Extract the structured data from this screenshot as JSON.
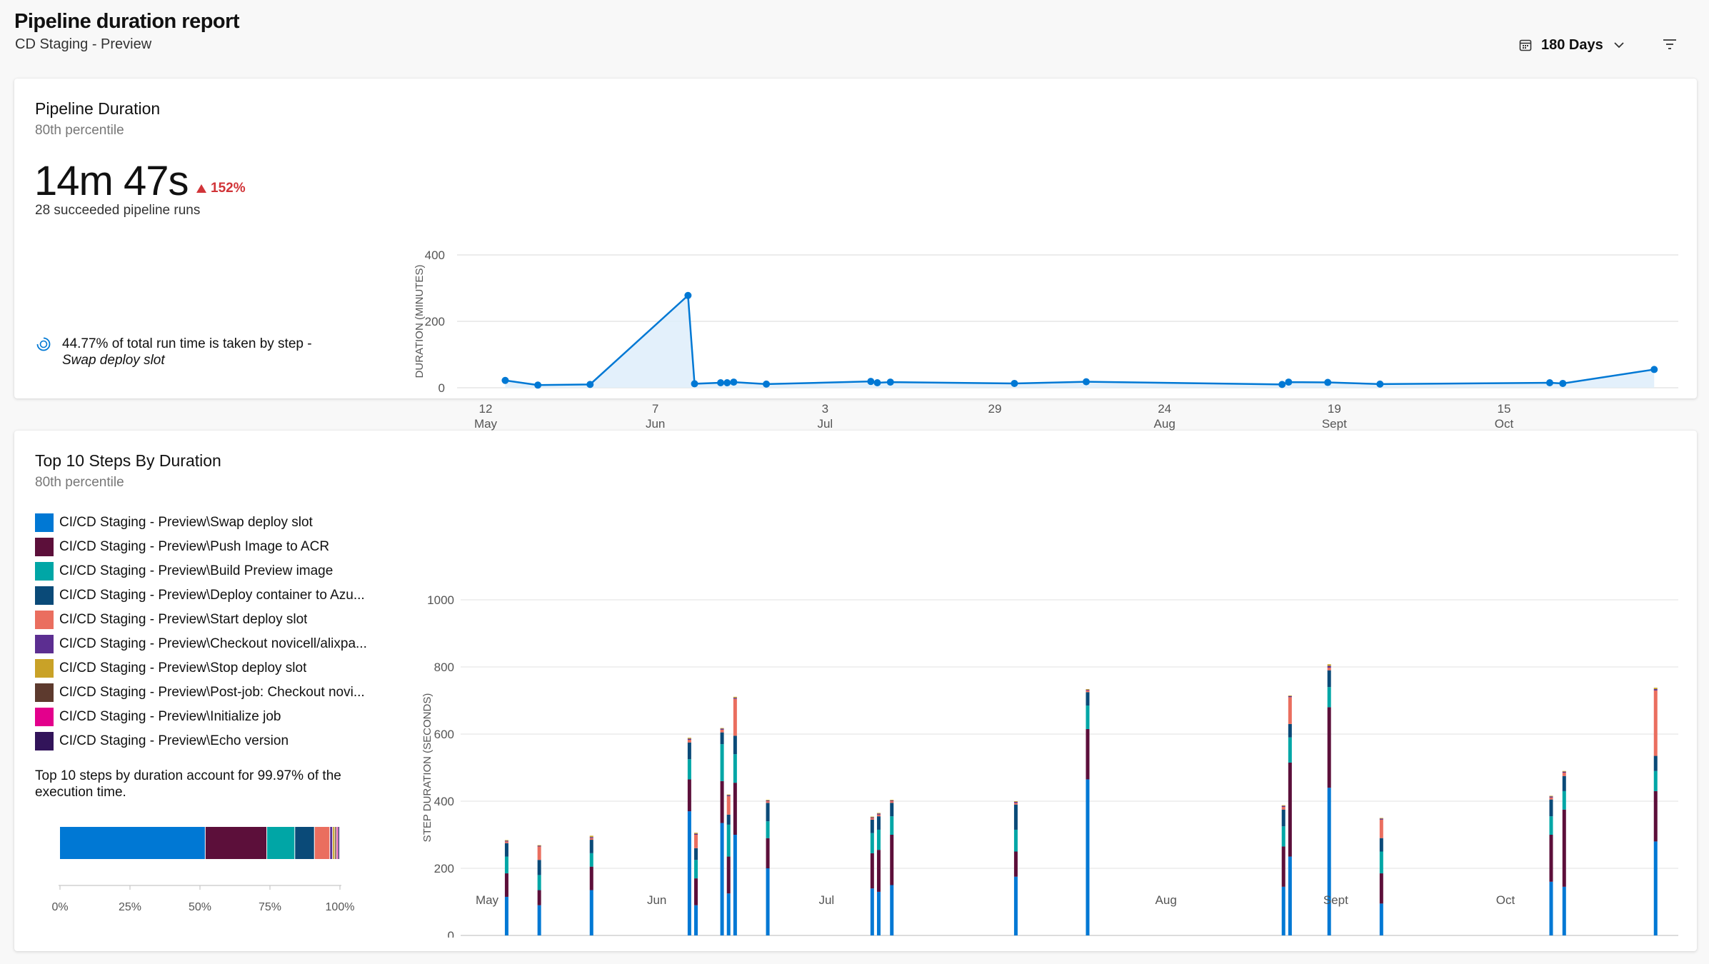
{
  "header": {
    "title": "Pipeline duration report",
    "subtitle": "CD Staging - Preview",
    "range_label": "180 Days",
    "calendar_icon": "calendar-icon",
    "chevron_icon": "chevron-down-icon",
    "filter_icon": "filter-icon"
  },
  "duration_card": {
    "title": "Pipeline Duration",
    "subtitle": "80th percentile",
    "metric": "14m 47s",
    "trend": "152%",
    "trend_color": "#d13438",
    "runs": "28 succeeded pipeline runs",
    "insight_text": "44.77% of total run time is taken by step -",
    "insight_step": "Swap deploy slot",
    "insight_icon": "insight-icon"
  },
  "steps_card": {
    "title": "Top 10 Steps By Duration",
    "subtitle": "80th percentile",
    "note": "Top 10 steps by duration account for 99.97% of the execution time.",
    "legend": [
      {
        "label": "CI/CD Staging - Preview\\Swap deploy slot",
        "color": "#0078d4"
      },
      {
        "label": "CI/CD Staging - Preview\\Push Image to ACR",
        "color": "#5c0f3a"
      },
      {
        "label": "CI/CD Staging - Preview\\Build Preview image",
        "color": "#00a6a6"
      },
      {
        "label": "CI/CD Staging - Preview\\Deploy container to Azu...",
        "color": "#0a4a78"
      },
      {
        "label": "CI/CD Staging - Preview\\Start deploy slot",
        "color": "#ea6e5f"
      },
      {
        "label": "CI/CD Staging - Preview\\Checkout novicell/alixpa...",
        "color": "#5c2e91"
      },
      {
        "label": "CI/CD Staging - Preview\\Stop deploy slot",
        "color": "#c9a227"
      },
      {
        "label": "CI/CD Staging - Preview\\Post-job: Checkout novi...",
        "color": "#5d3a2e"
      },
      {
        "label": "CI/CD Staging - Preview\\Initialize job",
        "color": "#e3008c"
      },
      {
        "label": "CI/CD Staging - Preview\\Echo version",
        "color": "#32145a"
      }
    ]
  },
  "chart_data": [
    {
      "type": "area",
      "title": "Pipeline Duration",
      "ylabel": "DURATION (MINUTES)",
      "ylim": [
        0,
        400
      ],
      "yticks": [
        0,
        200,
        400
      ],
      "xticks": [
        {
          "day": "12",
          "month": "May"
        },
        {
          "day": "7",
          "month": "Jun"
        },
        {
          "day": "3",
          "month": "Jul"
        },
        {
          "day": "29",
          "month": ""
        },
        {
          "day": "24",
          "month": "Aug"
        },
        {
          "day": "19",
          "month": "Sept"
        },
        {
          "day": "15",
          "month": "Oct"
        }
      ],
      "xtick_dates": [
        "2023-05-12",
        "2023-06-07",
        "2023-07-03",
        "2023-07-29",
        "2023-08-24",
        "2023-09-19",
        "2023-10-15"
      ],
      "grid": true,
      "points": [
        {
          "x": "2023-05-15",
          "y": 22
        },
        {
          "x": "2023-05-20",
          "y": 8
        },
        {
          "x": "2023-05-28",
          "y": 10
        },
        {
          "x": "2023-06-12",
          "y": 278
        },
        {
          "x": "2023-06-13",
          "y": 12
        },
        {
          "x": "2023-06-17",
          "y": 15
        },
        {
          "x": "2023-06-18",
          "y": 15
        },
        {
          "x": "2023-06-19",
          "y": 17
        },
        {
          "x": "2023-06-24",
          "y": 11
        },
        {
          "x": "2023-07-10",
          "y": 19
        },
        {
          "x": "2023-07-11",
          "y": 15
        },
        {
          "x": "2023-07-13",
          "y": 17
        },
        {
          "x": "2023-08-01",
          "y": 13
        },
        {
          "x": "2023-08-12",
          "y": 18
        },
        {
          "x": "2023-09-11",
          "y": 10
        },
        {
          "x": "2023-09-12",
          "y": 17
        },
        {
          "x": "2023-09-18",
          "y": 16
        },
        {
          "x": "2023-09-26",
          "y": 11
        },
        {
          "x": "2023-10-22",
          "y": 15
        },
        {
          "x": "2023-10-24",
          "y": 13
        },
        {
          "x": "2023-11-07",
          "y": 55
        }
      ]
    },
    {
      "type": "bar",
      "stacked": true,
      "title": "Top 10 Steps By Duration",
      "ylabel": "STEP DURATION (SECONDS)",
      "ylim": [
        0,
        1000
      ],
      "yticks": [
        0,
        200,
        400,
        600,
        800,
        1000
      ],
      "xticks": [
        {
          "day": "12",
          "month": "May"
        },
        {
          "day": "7",
          "month": "Jun"
        },
        {
          "day": "3",
          "month": "Jul"
        },
        {
          "day": "29",
          "month": ""
        },
        {
          "day": "24",
          "month": "Aug"
        },
        {
          "day": "19",
          "month": "Sept"
        },
        {
          "day": "15",
          "month": "Oct"
        }
      ],
      "xtick_dates": [
        "2023-05-12",
        "2023-06-07",
        "2023-07-03",
        "2023-07-29",
        "2023-08-24",
        "2023-09-19",
        "2023-10-15"
      ],
      "grid": true,
      "series_order": [
        "Swap deploy slot",
        "Push Image to ACR",
        "Build Preview image",
        "Deploy container to Azu...",
        "Start deploy slot",
        "Checkout novicell/alixpa...",
        "Stop deploy slot"
      ],
      "bars": [
        {
          "x": "2023-05-15",
          "values": [
            115,
            70,
            50,
            40,
            5,
            2,
            2
          ]
        },
        {
          "x": "2023-05-20",
          "values": [
            90,
            45,
            45,
            45,
            40,
            2,
            2
          ]
        },
        {
          "x": "2023-05-28",
          "values": [
            135,
            70,
            40,
            40,
            5,
            3,
            4
          ]
        },
        {
          "x": "2023-06-12",
          "values": [
            370,
            95,
            60,
            50,
            8,
            3,
            3
          ]
        },
        {
          "x": "2023-06-13",
          "values": [
            90,
            80,
            55,
            35,
            40,
            3,
            3
          ]
        },
        {
          "x": "2023-06-17",
          "values": [
            335,
            125,
            110,
            35,
            8,
            3,
            2
          ]
        },
        {
          "x": "2023-06-18",
          "values": [
            125,
            110,
            95,
            30,
            55,
            3,
            2
          ]
        },
        {
          "x": "2023-06-19",
          "values": [
            300,
            155,
            85,
            55,
            110,
            3,
            3
          ]
        },
        {
          "x": "2023-06-24",
          "values": [
            200,
            90,
            50,
            55,
            5,
            2,
            2
          ]
        },
        {
          "x": "2023-07-10",
          "values": [
            140,
            105,
            60,
            40,
            5,
            2,
            2
          ]
        },
        {
          "x": "2023-07-11",
          "values": [
            130,
            125,
            60,
            40,
            5,
            3,
            2
          ]
        },
        {
          "x": "2023-07-13",
          "values": [
            150,
            150,
            55,
            40,
            5,
            2,
            2
          ]
        },
        {
          "x": "2023-08-01",
          "values": [
            175,
            75,
            65,
            75,
            5,
            3,
            2
          ]
        },
        {
          "x": "2023-08-12",
          "values": [
            465,
            150,
            70,
            40,
            5,
            2,
            2
          ]
        },
        {
          "x": "2023-09-11",
          "values": [
            145,
            120,
            60,
            50,
            8,
            3,
            2
          ]
        },
        {
          "x": "2023-09-12",
          "values": [
            235,
            280,
            75,
            40,
            80,
            3,
            2
          ]
        },
        {
          "x": "2023-09-18",
          "values": [
            440,
            240,
            60,
            50,
            8,
            5,
            5
          ]
        },
        {
          "x": "2023-09-26",
          "values": [
            95,
            90,
            65,
            40,
            55,
            3,
            2
          ]
        },
        {
          "x": "2023-10-22",
          "values": [
            160,
            140,
            55,
            50,
            6,
            3,
            2
          ]
        },
        {
          "x": "2023-10-24",
          "values": [
            145,
            230,
            55,
            45,
            10,
            3,
            2
          ]
        },
        {
          "x": "2023-11-07",
          "values": [
            280,
            150,
            60,
            45,
            195,
            4,
            4
          ]
        }
      ]
    },
    {
      "type": "bar",
      "stacked": true,
      "orientation": "horizontal",
      "title": "",
      "xticks": [
        "0%",
        "25%",
        "50%",
        "75%",
        "100%"
      ],
      "values": [
        52,
        22,
        10,
        7,
        5.5,
        1,
        0.8,
        0.6,
        0.5,
        0.6
      ]
    }
  ]
}
